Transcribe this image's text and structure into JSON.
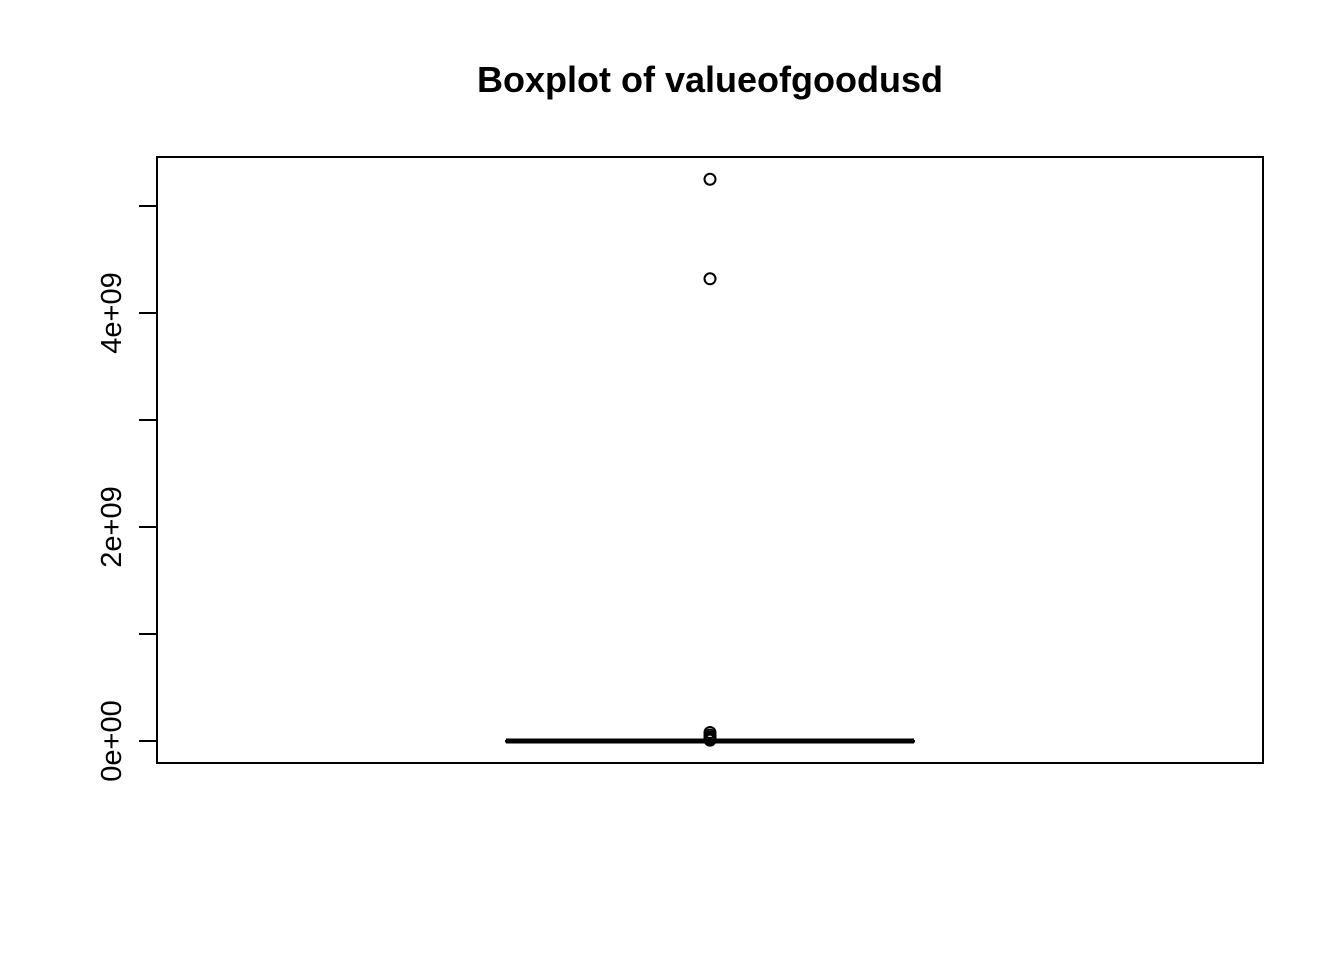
{
  "chart_data": {
    "type": "box",
    "title": "Boxplot of valueofgoodusd",
    "xlabel": "",
    "ylabel": "",
    "ylim": [
      -100000000,
      5550000000
    ],
    "y_ticks": [
      0,
      1000000000,
      2000000000,
      3000000000,
      4000000000,
      5000000000
    ],
    "y_tick_labels": [
      {
        "value": 0,
        "label": "0e+00"
      },
      {
        "value": 2000000000,
        "label": "2e+09"
      },
      {
        "value": 4000000000,
        "label": "4e+09"
      }
    ],
    "box": {
      "min": 0,
      "q1": 0,
      "median": 0,
      "q3": 0,
      "max": 0
    },
    "outliers": [
      5250000000,
      4320000000,
      80000000,
      55000000,
      35000000,
      20000000,
      8000000
    ],
    "grid": false,
    "legend": "none"
  },
  "colors": {
    "ink": "#000000",
    "background": "#ffffff"
  }
}
